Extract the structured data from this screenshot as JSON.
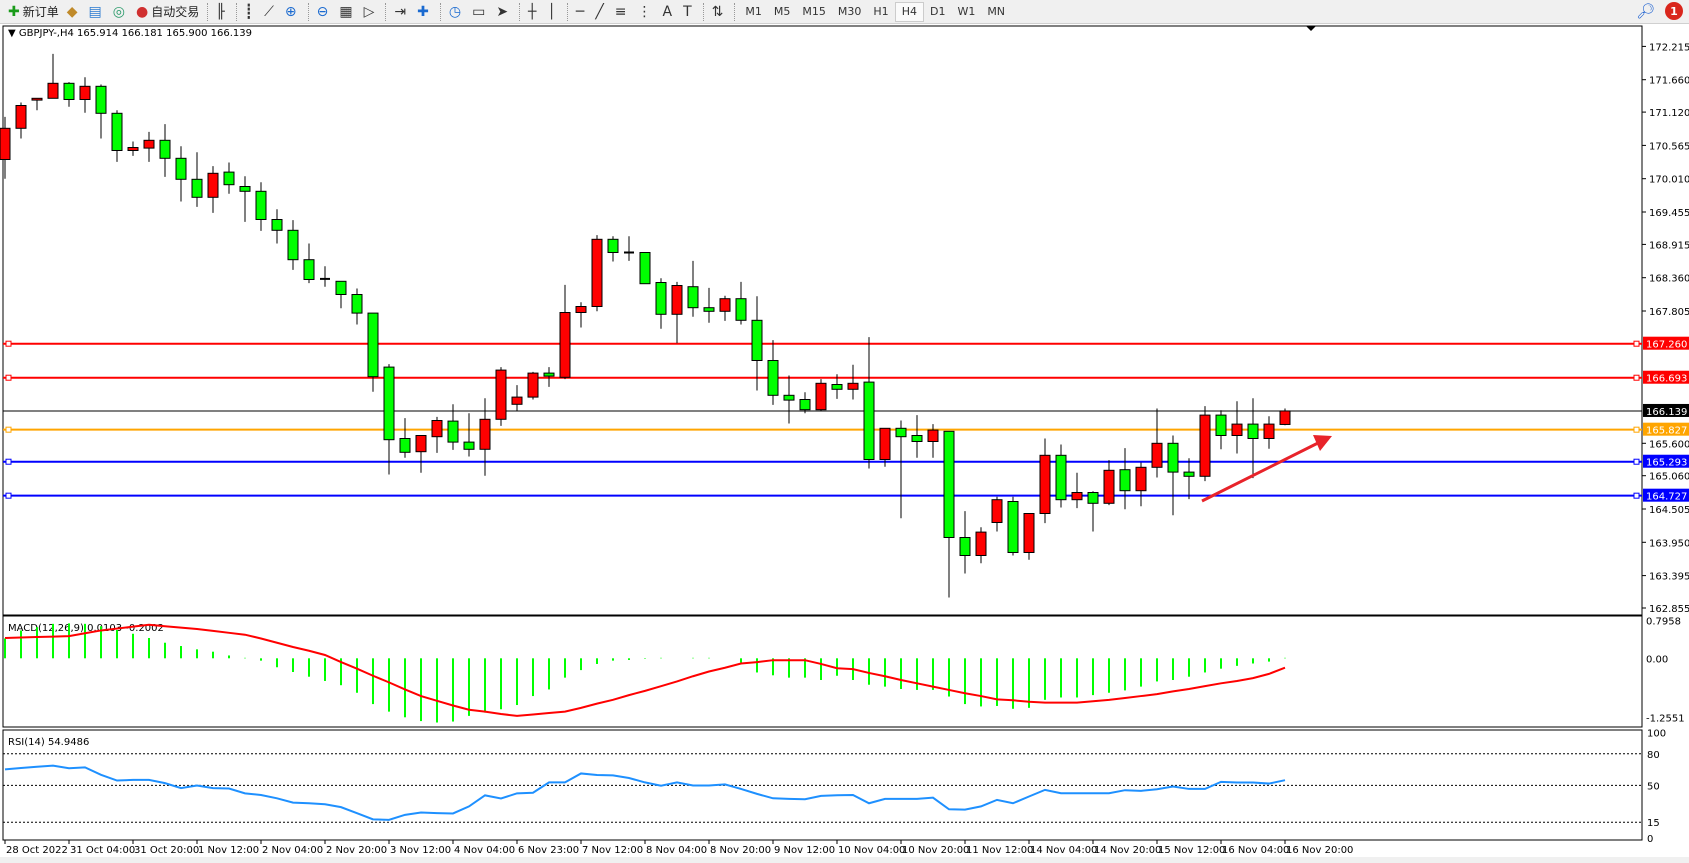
{
  "toolbar": {
    "items": [
      {
        "icon": "new-order-icon",
        "label": "新订单"
      },
      {
        "icon": "market-watch-icon",
        "label": ""
      },
      {
        "icon": "navigator-icon",
        "label": ""
      },
      {
        "icon": "signal-icon",
        "label": ""
      },
      {
        "icon": "autotrading-icon",
        "label": "自动交易"
      }
    ],
    "chart_tools": [
      "bar-chart-icon",
      "candlestick-icon",
      "line-chart-icon",
      "zoom-in-icon",
      "zoom-out-icon",
      "tile-windows-icon",
      "autoscroll-icon",
      "chart-shift-icon",
      "indicators-icon",
      "periods-icon",
      "templates-icon",
      "cursor-icon",
      "crosshair-icon",
      "vertical-line-icon",
      "horizontal-line-icon",
      "trendline-icon",
      "fibonacci-icon",
      "fibo-fan-icon",
      "text-icon",
      "text-label-icon",
      "arrows-icon"
    ],
    "text_tool_label": "A",
    "timeframes": [
      "M1",
      "M5",
      "M15",
      "M30",
      "H1",
      "H4",
      "D1",
      "W1",
      "MN"
    ],
    "active_timeframe": "H4",
    "notification_count": "1"
  },
  "chart": {
    "header": "GBPJPY-,H4  165.914 166.181 165.900 166.139",
    "colors": {
      "bull": "#ff0000",
      "bear": "#00ff00",
      "macd_hist": "#00ff00",
      "macd_signal": "#ff0000",
      "rsi": "#1e90ff"
    },
    "price_ticks": [
      "172.215",
      "171.660",
      "171.120",
      "170.565",
      "170.010",
      "169.455",
      "168.915",
      "168.360",
      "167.805",
      "165.600",
      "165.060",
      "164.505",
      "163.950",
      "163.395",
      "162.855"
    ],
    "levels": [
      {
        "price": "167.260",
        "color": "#ff0000"
      },
      {
        "price": "166.693",
        "color": "#ff0000"
      },
      {
        "price": "166.139",
        "color": "#000000"
      },
      {
        "price": "165.827",
        "color": "#ffa500"
      },
      {
        "price": "165.293",
        "color": "#0000ff"
      },
      {
        "price": "164.727",
        "color": "#0000ff"
      }
    ],
    "annotation": {
      "type": "arrow",
      "color": "#e8232a",
      "direction": "up-right"
    },
    "candles_ohlc": [
      [
        170.33,
        171.04,
        170.01,
        170.85
      ],
      [
        170.85,
        171.28,
        170.68,
        171.23
      ],
      [
        171.32,
        171.35,
        171.15,
        171.35
      ],
      [
        171.35,
        172.09,
        171.35,
        171.6
      ],
      [
        171.6,
        171.62,
        171.21,
        171.33
      ],
      [
        171.33,
        171.7,
        171.11,
        171.55
      ],
      [
        171.55,
        171.58,
        170.68,
        171.1
      ],
      [
        171.1,
        171.15,
        170.29,
        170.48
      ],
      [
        170.48,
        170.63,
        170.39,
        170.53
      ],
      [
        170.52,
        170.79,
        170.29,
        170.65
      ],
      [
        170.65,
        170.92,
        170.04,
        170.35
      ],
      [
        170.35,
        170.55,
        169.63,
        170.0
      ],
      [
        170.0,
        170.45,
        169.54,
        169.7
      ],
      [
        169.7,
        170.22,
        169.44,
        170.1
      ],
      [
        170.12,
        170.28,
        169.76,
        169.91
      ],
      [
        169.88,
        170.05,
        169.29,
        169.8
      ],
      [
        169.8,
        169.95,
        169.14,
        169.33
      ],
      [
        169.33,
        169.5,
        168.93,
        169.15
      ],
      [
        169.15,
        169.32,
        168.49,
        168.66
      ],
      [
        168.66,
        168.93,
        168.27,
        168.33
      ],
      [
        168.33,
        168.55,
        168.21,
        168.34
      ],
      [
        168.3,
        168.3,
        167.85,
        168.08
      ],
      [
        168.08,
        168.18,
        167.58,
        167.77
      ],
      [
        167.77,
        167.77,
        166.46,
        166.71
      ],
      [
        166.87,
        166.92,
        165.08,
        165.66
      ],
      [
        165.68,
        166.02,
        165.36,
        165.45
      ],
      [
        165.46,
        165.73,
        165.11,
        165.73
      ],
      [
        165.71,
        166.04,
        165.44,
        165.98
      ],
      [
        165.97,
        166.25,
        165.49,
        165.62
      ],
      [
        165.62,
        166.1,
        165.38,
        165.5
      ],
      [
        165.5,
        166.35,
        165.06,
        166.0
      ],
      [
        166.0,
        166.87,
        165.89,
        166.82
      ],
      [
        166.25,
        166.57,
        166.13,
        166.37
      ],
      [
        166.37,
        166.79,
        166.33,
        166.77
      ],
      [
        166.77,
        166.87,
        166.54,
        166.72
      ],
      [
        166.7,
        168.24,
        166.67,
        167.78
      ],
      [
        167.78,
        167.95,
        167.53,
        167.88
      ],
      [
        167.88,
        169.07,
        167.8,
        169.0
      ],
      [
        169.0,
        169.05,
        168.63,
        168.78
      ],
      [
        168.78,
        169.05,
        168.64,
        168.77
      ],
      [
        168.78,
        168.78,
        168.26,
        168.26
      ],
      [
        168.28,
        168.35,
        167.51,
        167.75
      ],
      [
        167.75,
        168.29,
        167.27,
        168.23
      ],
      [
        168.21,
        168.64,
        167.71,
        167.86
      ],
      [
        167.86,
        168.19,
        167.61,
        167.8
      ],
      [
        167.8,
        168.06,
        167.64,
        168.01
      ],
      [
        168.01,
        168.29,
        167.58,
        167.65
      ],
      [
        167.65,
        168.05,
        166.48,
        166.98
      ],
      [
        166.98,
        167.32,
        166.24,
        166.4
      ],
      [
        166.4,
        166.73,
        165.93,
        166.32
      ],
      [
        166.33,
        166.45,
        166.1,
        166.16
      ],
      [
        166.16,
        166.67,
        166.13,
        166.6
      ],
      [
        166.58,
        166.75,
        166.34,
        166.5
      ],
      [
        166.5,
        166.91,
        166.33,
        166.6
      ],
      [
        166.62,
        167.37,
        165.18,
        165.33
      ],
      [
        165.33,
        165.85,
        165.21,
        165.85
      ],
      [
        165.85,
        165.98,
        164.35,
        165.71
      ],
      [
        165.73,
        166.07,
        165.36,
        165.63
      ],
      [
        165.63,
        165.92,
        165.36,
        165.82
      ],
      [
        165.8,
        165.8,
        163.03,
        164.03
      ],
      [
        164.03,
        164.47,
        163.43,
        163.73
      ],
      [
        163.73,
        164.2,
        163.6,
        164.12
      ],
      [
        164.28,
        164.71,
        164.13,
        164.66
      ],
      [
        164.63,
        164.71,
        163.73,
        163.78
      ],
      [
        163.78,
        164.43,
        163.66,
        164.43
      ],
      [
        164.43,
        165.68,
        164.27,
        165.4
      ],
      [
        165.4,
        165.58,
        164.53,
        164.66
      ],
      [
        164.66,
        165.11,
        164.52,
        164.78
      ],
      [
        164.78,
        164.8,
        164.13,
        164.6
      ],
      [
        164.6,
        165.32,
        164.57,
        165.15
      ],
      [
        165.16,
        165.52,
        164.5,
        164.81
      ],
      [
        164.81,
        165.28,
        164.55,
        165.2
      ],
      [
        165.2,
        166.18,
        165.03,
        165.6
      ],
      [
        165.6,
        165.73,
        164.4,
        165.12
      ],
      [
        165.12,
        165.35,
        164.67,
        165.05
      ],
      [
        165.05,
        166.22,
        164.97,
        166.07
      ],
      [
        166.07,
        166.15,
        165.5,
        165.73
      ],
      [
        165.73,
        166.3,
        165.43,
        165.92
      ],
      [
        165.92,
        166.35,
        165.02,
        165.68
      ],
      [
        165.68,
        166.05,
        165.51,
        165.92
      ],
      [
        165.914,
        166.181,
        165.9,
        166.139
      ]
    ],
    "time_labels": [
      "28 Oct 2022",
      "31 Oct 04:00",
      "31 Oct 20:00",
      "1 Nov 12:00",
      "2 Nov 04:00",
      "2 Nov 20:00",
      "3 Nov 12:00",
      "4 Nov 04:00",
      "6 Nov 23:00",
      "7 Nov 12:00",
      "8 Nov 04:00",
      "8 Nov 20:00",
      "9 Nov 12:00",
      "10 Nov 04:00",
      "10 Nov 20:00",
      "11 Nov 12:00",
      "14 Nov 04:00",
      "14 Nov 20:00",
      "15 Nov 12:00",
      "16 Nov 04:00",
      "16 Nov 20:00"
    ]
  },
  "macd": {
    "label": "MACD(12,26,9) 0.0103 -0.2002",
    "ticks": [
      "0.7958",
      "0.00",
      "-1.2551"
    ],
    "histogram": [
      0.42,
      0.59,
      0.66,
      0.73,
      0.74,
      0.73,
      0.68,
      0.6,
      0.52,
      0.43,
      0.33,
      0.26,
      0.19,
      0.14,
      0.06,
      0.01,
      -0.05,
      -0.19,
      -0.29,
      -0.39,
      -0.48,
      -0.57,
      -0.73,
      -0.97,
      -1.13,
      -1.25,
      -1.33,
      -1.36,
      -1.34,
      -1.22,
      -1.15,
      -1.08,
      -0.99,
      -0.8,
      -0.66,
      -0.41,
      -0.25,
      -0.12,
      -0.05,
      -0.035,
      -0.01,
      0.01,
      0.0,
      0.01,
      0.01,
      0.0,
      -0.09,
      -0.3,
      -0.36,
      -0.41,
      -0.41,
      -0.46,
      -0.37,
      -0.46,
      -0.56,
      -0.6,
      -0.65,
      -0.67,
      -0.67,
      -0.81,
      -0.97,
      -1.02,
      -1.01,
      -1.07,
      -1.05,
      -0.88,
      -0.83,
      -0.83,
      -0.78,
      -0.73,
      -0.68,
      -0.6,
      -0.49,
      -0.46,
      -0.39,
      -0.3,
      -0.22,
      -0.16,
      -0.11,
      -0.07,
      0.01
    ],
    "signal": [
      0.43,
      0.44,
      0.45,
      0.46,
      0.47,
      0.53,
      0.59,
      0.63,
      0.67,
      0.71,
      0.68,
      0.65,
      0.62,
      0.58,
      0.54,
      0.5,
      0.42,
      0.33,
      0.24,
      0.16,
      0.07,
      -0.08,
      -0.22,
      -0.37,
      -0.51,
      -0.66,
      -0.8,
      -0.9,
      -1.0,
      -1.09,
      -1.13,
      -1.18,
      -1.22,
      -1.19,
      -1.16,
      -1.13,
      -1.05,
      -0.96,
      -0.88,
      -0.78,
      -0.69,
      -0.59,
      -0.49,
      -0.38,
      -0.28,
      -0.2,
      -0.11,
      -0.08,
      -0.04,
      -0.04,
      -0.04,
      -0.12,
      -0.21,
      -0.23,
      -0.31,
      -0.38,
      -0.46,
      -0.53,
      -0.6,
      -0.67,
      -0.74,
      -0.8,
      -0.87,
      -0.89,
      -0.92,
      -0.94,
      -0.94,
      -0.94,
      -0.91,
      -0.88,
      -0.84,
      -0.8,
      -0.76,
      -0.7,
      -0.65,
      -0.59,
      -0.53,
      -0.48,
      -0.42,
      -0.33,
      -0.2
    ]
  },
  "rsi": {
    "label": "RSI(14) 54.9486",
    "ticks": [
      "100",
      "80",
      "50",
      "15",
      "0"
    ],
    "levels": [
      80,
      50,
      15
    ],
    "values": [
      65.2,
      66.5,
      67.7,
      68.7,
      66.2,
      67.1,
      60.0,
      54.6,
      55.2,
      55.2,
      52.1,
      47.4,
      49.9,
      47.4,
      47.0,
      42.4,
      40.8,
      37.7,
      33.6,
      33.0,
      32.0,
      29.3,
      23.6,
      17.7,
      17.2,
      22.0,
      24.2,
      23.6,
      23.3,
      30.0,
      40.5,
      37.5,
      42.4,
      43.0,
      52.8,
      52.8,
      61.3,
      59.8,
      59.5,
      57.0,
      52.8,
      49.6,
      52.8,
      49.9,
      49.9,
      50.9,
      46.6,
      41.9,
      37.7,
      37.1,
      36.8,
      40.0,
      40.6,
      40.8,
      33.0,
      37.1,
      37.1,
      37.1,
      38.3,
      27.3,
      27.0,
      30.0,
      36.2,
      33.0,
      39.4,
      45.7,
      42.5,
      42.5,
      42.5,
      42.5,
      45.4,
      44.8,
      46.3,
      48.9,
      46.6,
      46.6,
      53.3,
      52.7,
      52.7,
      51.7,
      54.9
    ]
  }
}
